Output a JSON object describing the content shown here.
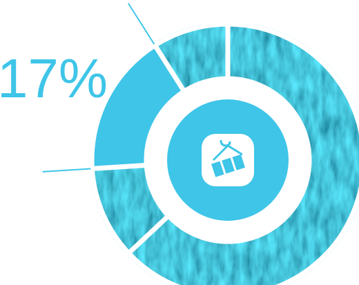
{
  "chart_data": {
    "type": "donut",
    "categories": [
      null,
      null,
      null,
      null
    ],
    "values": [
      63,
      11,
      17,
      9
    ],
    "value_labels": [
      null,
      null,
      "17%",
      null
    ],
    "colors": [
      "#1d8aa8",
      "#1d8aa8",
      "#3ec5e8",
      "#1d8aa8"
    ],
    "textured": [
      true,
      true,
      false,
      true
    ]
  }
}
